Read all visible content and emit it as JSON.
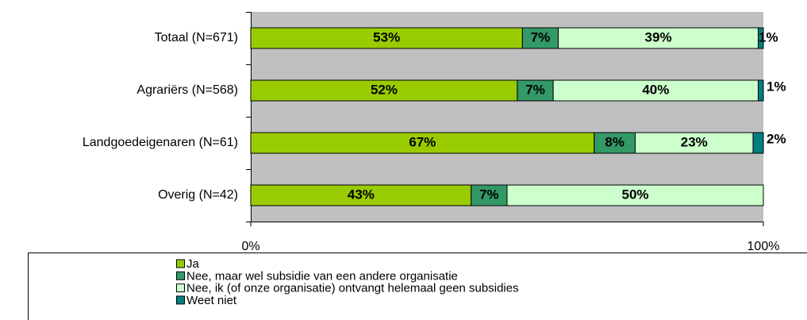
{
  "chart_data": {
    "type": "stacked_bar_horizontal",
    "categories": [
      "Totaal (N=671)",
      "Agrariërs (N=568)",
      "Landgoedeigenaren (N=61)",
      "Overig (N=42)"
    ],
    "series": [
      {
        "name": "Ja",
        "color": "#99cc00",
        "values": [
          53,
          52,
          67,
          43
        ],
        "value_labels": [
          "53%",
          "52%",
          "67%",
          "43%"
        ]
      },
      {
        "name": "Nee, maar wel subsidie van een andere organisatie",
        "color": "#339966",
        "values": [
          7,
          7,
          8,
          7
        ],
        "value_labels": [
          "7%",
          "7%",
          "8%",
          "7%"
        ]
      },
      {
        "name": "Nee, ik (of onze organisatie) ontvangt helemaal geen subsidies",
        "color": "#ccffcc",
        "values": [
          39,
          40,
          23,
          50
        ],
        "value_labels": [
          "39%",
          "40%",
          "23%",
          "50%"
        ]
      },
      {
        "name": "Weet niet",
        "color": "#008080",
        "values": [
          1,
          1,
          2,
          null
        ],
        "value_labels": [
          "1%",
          "1%",
          "2%",
          null
        ]
      }
    ],
    "xlim": [
      0,
      100
    ],
    "xticks": [
      {
        "value": 0,
        "label": "0%"
      },
      {
        "value": 100,
        "label": "100%"
      }
    ]
  }
}
